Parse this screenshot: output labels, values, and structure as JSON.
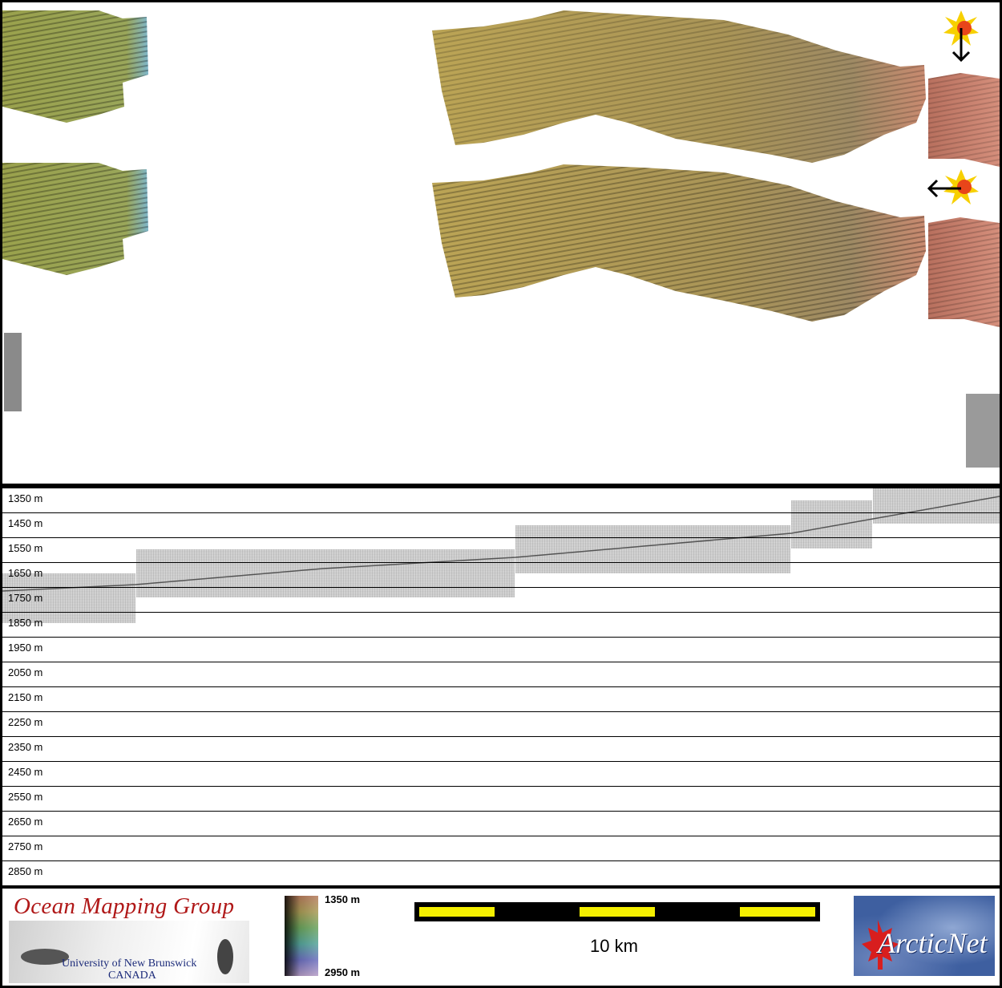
{
  "depth_axis": {
    "labels": [
      "1350 m",
      "1450 m",
      "1550 m",
      "1650 m",
      "1750 m",
      "1850 m",
      "1950 m",
      "2050 m",
      "2150 m",
      "2250 m",
      "2350 m",
      "2450 m",
      "2550 m",
      "2650 m",
      "2750 m",
      "2850 m"
    ]
  },
  "footer": {
    "omg_title": "Ocean Mapping Group",
    "omg_university": "University of New Brunswick",
    "omg_country": "CANADA",
    "legend_top": "1350 m",
    "legend_bottom": "2950 m",
    "scale_label": "10 km",
    "arctic_logo_text": "ArcticNet"
  },
  "colors": {
    "swath_low": "#b89a55",
    "swath_high": "#c97a62",
    "scale_yellow": "#f4ef00",
    "omg_red": "#b01818",
    "omg_blue": "#1c2b7a"
  }
}
